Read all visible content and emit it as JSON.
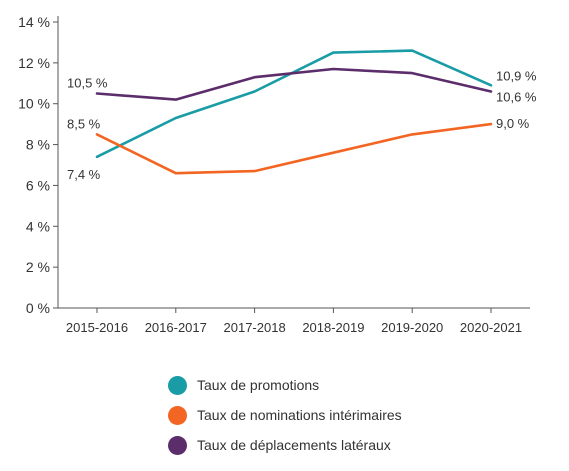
{
  "chart_data": {
    "type": "line",
    "categories": [
      "2015-2016",
      "2016-2017",
      "2017-2018",
      "2018-2019",
      "2019-2020",
      "2020-2021"
    ],
    "series": [
      {
        "name": "Taux de promotions",
        "color": "#1a9ca6",
        "values": [
          7.4,
          9.3,
          10.6,
          12.5,
          12.6,
          10.9
        ]
      },
      {
        "name": "Taux de nominations intérimaires",
        "color": "#f26522",
        "values": [
          8.5,
          6.6,
          6.7,
          7.6,
          8.5,
          9.0
        ]
      },
      {
        "name": "Taux de déplacements latéraux",
        "color": "#5c2d6b",
        "values": [
          10.5,
          10.2,
          11.3,
          11.7,
          11.5,
          10.6
        ]
      }
    ],
    "yticks": [
      "0 %",
      "2 %",
      "4 %",
      "6 %",
      "8 %",
      "10 %",
      "12 %",
      "14 %"
    ],
    "ylim": [
      0,
      14
    ],
    "grid": false,
    "legend_position": "bottom",
    "annotations": [
      {
        "text": "10,5 %",
        "series": 2,
        "index": 0
      },
      {
        "text": "8,5 %",
        "series": 1,
        "index": 0
      },
      {
        "text": "7,4 %",
        "series": 0,
        "index": 0
      },
      {
        "text": "10,9 %",
        "series": 0,
        "index": 5
      },
      {
        "text": "10,6 %",
        "series": 2,
        "index": 5
      },
      {
        "text": "9,0 %",
        "series": 1,
        "index": 5
      }
    ]
  }
}
